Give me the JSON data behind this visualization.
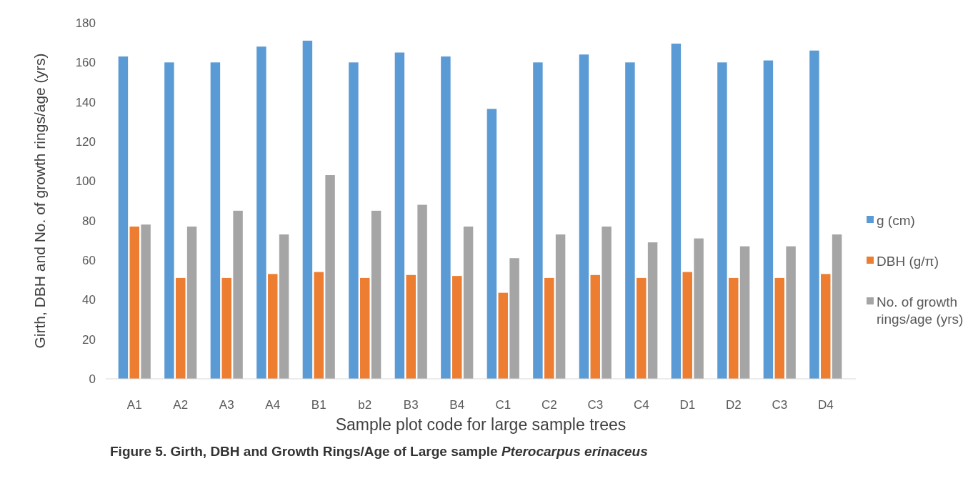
{
  "chart_data": {
    "type": "bar",
    "xlabel": "Sample plot code for large sample trees",
    "ylabel": "Girth, DBH and No. of growth rings/age (yrs)",
    "annotations": [
      "Figure 5. Girth, DBH and Growth Rings/Age of Large sample Pterocarpus erinaceus"
    ],
    "categories": [
      "A1",
      "A2",
      "A3",
      "A4",
      "B1",
      "b2",
      "B3",
      "B4",
      "C1",
      "C2",
      "C3",
      "C4",
      "D1",
      "D2",
      "C3",
      "D4"
    ],
    "series": [
      {
        "name": "g (cm)",
        "color": "#5b9bd5",
        "values": [
          163,
          160,
          160,
          168,
          171,
          160,
          165,
          163,
          136.5,
          160,
          164,
          160,
          169.5,
          160,
          161,
          166
        ]
      },
      {
        "name": "DBH (g/π)",
        "color": "#ed7d31",
        "values": [
          77,
          51,
          51,
          53,
          54,
          51,
          52.5,
          52,
          43.5,
          51,
          52.5,
          51,
          54,
          51,
          51,
          53
        ]
      },
      {
        "name": "No. of growth rings/age (yrs)",
        "color": "#a5a5a5",
        "values": [
          78,
          77,
          85,
          73,
          103,
          85,
          88,
          77,
          61,
          73,
          77,
          69,
          71,
          67,
          67,
          73
        ]
      }
    ],
    "ylim": [
      0,
      180
    ],
    "yticks": [
      0,
      20,
      40,
      60,
      80,
      100,
      120,
      140,
      160,
      180
    ],
    "grid": false,
    "legend": "right"
  }
}
